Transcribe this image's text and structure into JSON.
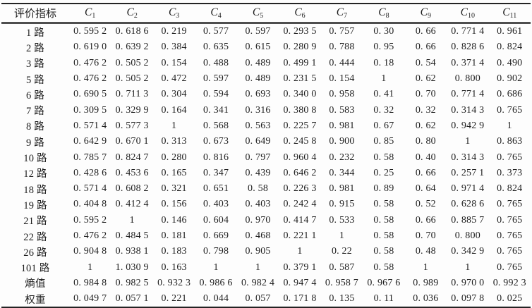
{
  "table": {
    "header": {
      "index_label": "评价指标",
      "columns": [
        {
          "base": "C",
          "sub": "1"
        },
        {
          "base": "C",
          "sub": "2"
        },
        {
          "base": "C",
          "sub": "3"
        },
        {
          "base": "C",
          "sub": "4"
        },
        {
          "base": "C",
          "sub": "5"
        },
        {
          "base": "C",
          "sub": "6"
        },
        {
          "base": "C",
          "sub": "7"
        },
        {
          "base": "C",
          "sub": "8"
        },
        {
          "base": "C",
          "sub": "9"
        },
        {
          "base": "C",
          "sub": "10"
        },
        {
          "base": "C",
          "sub": "11"
        }
      ]
    },
    "rows": [
      {
        "label": "1 路",
        "values": [
          "0. 595 2",
          "0. 618 6",
          "0. 219",
          "0. 577",
          "0. 597",
          "0. 293 5",
          "0. 757",
          "0. 30",
          "0. 66",
          "0. 771 4",
          "0. 961"
        ]
      },
      {
        "label": "2 路",
        "values": [
          "0. 619 0",
          "0. 639 2",
          "0. 384",
          "0. 635",
          "0. 615",
          "0. 280 9",
          "0. 788",
          "0. 95",
          "0. 66",
          "0. 828 6",
          "0. 824"
        ]
      },
      {
        "label": "3 路",
        "values": [
          "0. 476 2",
          "0. 505 2",
          "0. 154",
          "0. 488",
          "0. 489",
          "0. 499 1",
          "0. 444",
          "0. 18",
          "0. 54",
          "0. 371 4",
          "0. 490"
        ]
      },
      {
        "label": "5 路",
        "values": [
          "0. 476 2",
          "0. 505 2",
          "0. 472",
          "0. 597",
          "0. 489",
          "0. 231 5",
          "0. 154",
          "1",
          "0. 62",
          "0. 800",
          "0. 902"
        ]
      },
      {
        "label": "6 路",
        "values": [
          "0. 690 5",
          "0. 711 3",
          "0. 304",
          "0. 594",
          "0. 693",
          "0. 340 0",
          "0. 958",
          "0. 41",
          "0. 70",
          "0. 771 4",
          "0. 686"
        ]
      },
      {
        "label": "7 路",
        "values": [
          "0. 309 5",
          "0. 329 9",
          "0. 164",
          "0. 341",
          "0. 316",
          "0. 380 8",
          "0. 583",
          "0. 32",
          "0. 32",
          "0. 314 3",
          "0. 765"
        ]
      },
      {
        "label": "8 路",
        "values": [
          "0. 571 4",
          "0. 577 3",
          "1",
          "0. 568",
          "0. 563",
          "0. 225 7",
          "0. 981",
          "0. 67",
          "0. 62",
          "0. 942 9",
          "1"
        ]
      },
      {
        "label": "9 路",
        "values": [
          "0. 642 9",
          "0. 670 1",
          "0. 313",
          "0. 673",
          "0. 649",
          "0. 245 8",
          "0. 900",
          "0. 85",
          "0. 80",
          "1",
          "0. 863"
        ]
      },
      {
        "label": "10 路",
        "values": [
          "0. 785 7",
          "0. 824 7",
          "0. 280",
          "0. 816",
          "0. 797",
          "0. 960 4",
          "0. 232",
          "0. 58",
          "0. 40",
          "0. 314 3",
          "0. 765"
        ]
      },
      {
        "label": "12 路",
        "values": [
          "0. 428 6",
          "0. 453 6",
          "0. 165",
          "0. 347",
          "0. 439",
          "0. 646 2",
          "0. 344",
          "0. 25",
          "0. 66",
          "0. 257 1",
          "0. 373"
        ]
      },
      {
        "label": "18 路",
        "values": [
          "0. 571 4",
          "0. 608 2",
          "0. 321",
          "0. 651",
          "0. 58",
          "0. 226 3",
          "0. 981",
          "0. 89",
          "0. 64",
          "0. 971 4",
          "0. 824"
        ]
      },
      {
        "label": "19 路",
        "values": [
          "0. 404 8",
          "0. 412 4",
          "0. 156",
          "0. 403",
          "0. 403",
          "0. 242 4",
          "0. 915",
          "0. 58",
          "0. 52",
          "0. 628 6",
          "0. 765"
        ]
      },
      {
        "label": "21 路",
        "values": [
          "0. 595 2",
          "1",
          "0. 146",
          "0. 604",
          "0. 970",
          "0. 414 7",
          "0. 533",
          "0. 58",
          "0. 66",
          "0. 885 7",
          "0. 765"
        ]
      },
      {
        "label": "22 路",
        "values": [
          "0. 476 2",
          "0. 484 5",
          "0. 181",
          "0. 669",
          "0. 468",
          "0. 221 1",
          "1",
          "0. 58",
          "0. 70",
          "0. 800",
          "0. 765"
        ]
      },
      {
        "label": "26 路",
        "values": [
          "0. 904 8",
          "0. 938 1",
          "0. 183",
          "0. 798",
          "0. 905",
          "1",
          "0. 22",
          "0. 58",
          "0. 48",
          "0. 342 9",
          "0. 765"
        ]
      },
      {
        "label": "101 路",
        "values": [
          "1",
          "1. 030 9",
          "0. 163",
          "1",
          "1",
          "0. 379 1",
          "0. 587",
          "0. 58",
          "1",
          "1",
          "0. 765"
        ]
      },
      {
        "label": "熵值",
        "values": [
          "0. 984 8",
          "0. 982 5",
          "0. 932 3",
          "0. 986 6",
          "0. 982 4",
          "0. 947 4",
          "0. 958 7",
          "0. 967 6",
          "0. 989",
          "0. 970 0",
          "0. 992 3"
        ]
      },
      {
        "label": "权重",
        "values": [
          "0. 049 7",
          "0. 057 1",
          "0. 221",
          "0. 044",
          "0. 057",
          "0. 171 8",
          "0. 135",
          "0. 11",
          "0. 036",
          "0. 097 8",
          "0. 025"
        ]
      }
    ]
  },
  "colors": {
    "text": "#1e1e1e",
    "rule_heavy": "#232323",
    "rule_header": "#4e4e4e",
    "background": "#fdfdfd"
  }
}
